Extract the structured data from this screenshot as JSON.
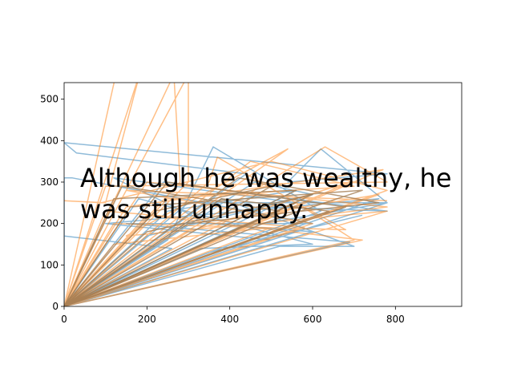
{
  "chart_data": {
    "type": "line",
    "title": "",
    "xlabel": "",
    "ylabel": "",
    "xlim": [
      0,
      960
    ],
    "ylim": [
      0,
      540
    ],
    "xticks": [
      0,
      200,
      400,
      600,
      800
    ],
    "yticks": [
      0,
      100,
      200,
      300,
      400,
      500
    ],
    "grid": false,
    "legend": "none",
    "annotation": {
      "line1": "Although he was wealthy, he",
      "line2": "was still unhappy."
    },
    "series": [
      {
        "color": "#1f77b4",
        "alpha": 0.5,
        "points": [
          [
            0,
            0
          ],
          [
            780,
            250
          ],
          [
            620,
            380
          ],
          [
            540,
            300
          ],
          [
            780,
            320
          ],
          [
            0,
            395
          ],
          [
            30,
            370
          ],
          [
            440,
            320
          ],
          [
            0,
            0
          ],
          [
            600,
            180
          ],
          [
            350,
            200
          ],
          [
            120,
            310
          ],
          [
            560,
            250
          ],
          [
            0,
            0
          ],
          [
            0,
            310
          ],
          [
            20,
            310
          ],
          [
            600,
            200
          ],
          [
            150,
            200
          ],
          [
            690,
            155
          ],
          [
            0,
            0
          ],
          [
            520,
            145
          ],
          [
            700,
            145
          ],
          [
            380,
            260
          ],
          [
            0,
            0
          ],
          [
            500,
            240
          ],
          [
            780,
            230
          ],
          [
            240,
            300
          ],
          [
            0,
            0
          ],
          [
            620,
            230
          ],
          [
            360,
            385
          ],
          [
            250,
            160
          ],
          [
            0,
            0
          ],
          [
            0,
            170
          ],
          [
            260,
            140
          ],
          [
            0,
            0
          ],
          [
            460,
            300
          ],
          [
            600,
            270
          ],
          [
            200,
            170
          ],
          [
            0,
            0
          ],
          [
            500,
            160
          ],
          [
            100,
            200
          ],
          [
            760,
            260
          ],
          [
            0,
            0
          ],
          [
            330,
            140
          ],
          [
            600,
            150
          ],
          [
            180,
            260
          ],
          [
            0,
            0
          ],
          [
            420,
            190
          ],
          [
            780,
            250
          ],
          [
            300,
            250
          ],
          [
            0,
            0
          ],
          [
            560,
            280
          ],
          [
            250,
            230
          ],
          [
            0,
            0
          ],
          [
            350,
            130
          ],
          [
            720,
            220
          ]
        ]
      },
      {
        "color": "#ff7f0e",
        "alpha": 0.5,
        "points": [
          [
            0,
            0
          ],
          [
            125,
            560
          ],
          [
            0,
            0
          ],
          [
            185,
            570
          ],
          [
            100,
            250
          ],
          [
            0,
            255
          ],
          [
            90,
            250
          ],
          [
            500,
            350
          ],
          [
            780,
            280
          ],
          [
            0,
            0
          ],
          [
            350,
            300
          ],
          [
            370,
            360
          ],
          [
            560,
            250
          ],
          [
            700,
            160
          ],
          [
            0,
            0
          ],
          [
            265,
            560
          ],
          [
            280,
            300
          ],
          [
            0,
            0
          ],
          [
            300,
            560
          ],
          [
            300,
            300
          ],
          [
            0,
            0
          ],
          [
            630,
            385
          ],
          [
            780,
            300
          ],
          [
            100,
            290
          ],
          [
            0,
            0
          ],
          [
            720,
            160
          ],
          [
            200,
            220
          ],
          [
            0,
            0
          ],
          [
            770,
            330
          ],
          [
            150,
            240
          ],
          [
            0,
            0
          ],
          [
            500,
            190
          ],
          [
            120,
            150
          ],
          [
            0,
            0
          ],
          [
            620,
            220
          ],
          [
            780,
            240
          ],
          [
            200,
            300
          ],
          [
            0,
            0
          ],
          [
            560,
            250
          ],
          [
            680,
            185
          ],
          [
            120,
            200
          ],
          [
            0,
            0
          ],
          [
            450,
            350
          ],
          [
            700,
            290
          ],
          [
            250,
            260
          ],
          [
            0,
            0
          ],
          [
            540,
            380
          ],
          [
            150,
            170
          ],
          [
            780,
            230
          ],
          [
            0,
            0
          ],
          [
            580,
            190
          ],
          [
            100,
            230
          ],
          [
            0,
            0
          ],
          [
            760,
            270
          ],
          [
            400,
            210
          ],
          [
            0,
            0
          ],
          [
            690,
            300
          ],
          [
            300,
            180
          ],
          [
            0,
            0
          ],
          [
            600,
            200
          ],
          [
            150,
            280
          ],
          [
            780,
            255
          ]
        ]
      },
      {
        "color": "#a0774a",
        "alpha": 0.75,
        "points": [
          [
            0,
            0
          ],
          [
            560,
            280
          ],
          [
            120,
            260
          ],
          [
            0,
            0
          ],
          [
            420,
            310
          ],
          [
            760,
            250
          ],
          [
            300,
            200
          ],
          [
            0,
            0
          ],
          [
            520,
            230
          ],
          [
            140,
            290
          ],
          [
            0,
            0
          ],
          [
            600,
            270
          ],
          [
            200,
            180
          ],
          [
            0,
            0
          ],
          [
            680,
            240
          ],
          [
            250,
            300
          ],
          [
            0,
            0
          ],
          [
            480,
            200
          ],
          [
            720,
            280
          ],
          [
            160,
            240
          ],
          [
            0,
            0
          ],
          [
            380,
            260
          ],
          [
            640,
            230
          ],
          [
            0,
            0
          ],
          [
            500,
            290
          ],
          [
            220,
            230
          ],
          [
            0,
            0
          ],
          [
            580,
            260
          ]
        ]
      }
    ]
  }
}
